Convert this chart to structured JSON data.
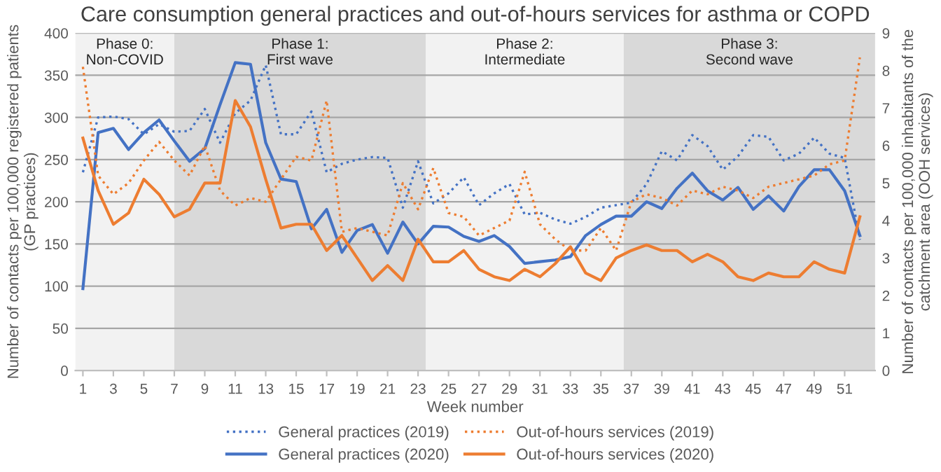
{
  "chart_data": {
    "type": "line",
    "title": "Care consumption general practices and out-of-hours services for asthma or COPD",
    "xlabel": "Week number",
    "ylabel": "Number of contacts per 100,000 registered patients\n(GP practices)",
    "y2label": "Number of contacts per 100,000 inhabitants of the\ncatchment area (OOH services)",
    "x": [
      1,
      2,
      3,
      4,
      5,
      6,
      7,
      8,
      9,
      10,
      11,
      12,
      13,
      14,
      15,
      16,
      17,
      18,
      19,
      20,
      21,
      22,
      23,
      24,
      25,
      26,
      27,
      28,
      29,
      30,
      31,
      32,
      33,
      34,
      35,
      36,
      37,
      38,
      39,
      40,
      41,
      42,
      43,
      44,
      45,
      46,
      47,
      48,
      49,
      50,
      51,
      52
    ],
    "xlim": [
      0.5,
      53
    ],
    "xticks": [
      1,
      3,
      5,
      7,
      9,
      11,
      13,
      15,
      17,
      19,
      21,
      23,
      25,
      27,
      29,
      31,
      33,
      35,
      37,
      39,
      41,
      43,
      45,
      47,
      49,
      51
    ],
    "ylim": [
      0,
      400
    ],
    "yticks": [
      0,
      50,
      100,
      150,
      200,
      250,
      300,
      350,
      400
    ],
    "y2lim": [
      0,
      9
    ],
    "y2ticks": [
      0,
      1,
      2,
      3,
      4,
      5,
      6,
      7,
      8,
      9
    ],
    "grid": "y",
    "legend": "bottom",
    "marker": "none",
    "bands": [
      {
        "axis": "x",
        "from": 0.5,
        "to": 7,
        "label": "Phase 0:\nNon-COVID",
        "color": "#f2f2f2"
      },
      {
        "axis": "x",
        "from": 7,
        "to": 23.5,
        "label": "Phase 1:\nFirst wave",
        "color": "#d9d9d9"
      },
      {
        "axis": "x",
        "from": 23.5,
        "to": 36.5,
        "label": "Phase 2:\nIntermediate",
        "color": "#f2f2f2"
      },
      {
        "axis": "x",
        "from": 36.5,
        "to": 53,
        "label": "Phase 3:\nSecond wave",
        "color": "#d9d9d9"
      }
    ],
    "series": [
      {
        "name": "General practices (2019)",
        "color": "#4472c4",
        "line_style": "dotted",
        "values": [
          235,
          300,
          301,
          298,
          280,
          292,
          283,
          284,
          310,
          270,
          305,
          320,
          362,
          280,
          280,
          307,
          235,
          245,
          250,
          253,
          252,
          193,
          248,
          198,
          210,
          229,
          196,
          210,
          221,
          185,
          187,
          179,
          174,
          182,
          193,
          196,
          199,
          221,
          260,
          249,
          279,
          266,
          238,
          254,
          279,
          277,
          249,
          257,
          276,
          257,
          252,
          155
        ]
      },
      {
        "name": "General practices (2020)",
        "color": "#4472c4",
        "line_style": "solid",
        "values": [
          97,
          282,
          287,
          262,
          282,
          297,
          272,
          248,
          263,
          315,
          365,
          363,
          270,
          227,
          224,
          168,
          191,
          140,
          166,
          173,
          139,
          176,
          150,
          171,
          170,
          159,
          153,
          160,
          147,
          127,
          129,
          131,
          135,
          160,
          173,
          183,
          183,
          200,
          192,
          216,
          234,
          213,
          202,
          217,
          191,
          207,
          189,
          218,
          238,
          238,
          213,
          160
        ]
      },
      {
        "name": "Out-of-hours services (2019)",
        "color": "#ed7d31",
        "line_style": "dotted",
        "axis": "y2",
        "values": [
          8.1,
          5.2,
          4.7,
          5.0,
          5.6,
          6.1,
          5.6,
          5.2,
          6.0,
          4.8,
          4.4,
          4.6,
          4.5,
          5.1,
          5.7,
          5.6,
          7.2,
          3.7,
          3.8,
          3.7,
          3.6,
          5.0,
          4.3,
          5.4,
          4.2,
          4.1,
          3.6,
          3.8,
          4.0,
          5.3,
          3.9,
          3.5,
          3.2,
          3.2,
          3.8,
          3.2,
          4.5,
          4.7,
          4.6,
          4.4,
          4.8,
          4.7,
          4.9,
          4.8,
          4.6,
          4.9,
          5.0,
          5.1,
          5.2,
          5.5,
          5.6,
          8.35
        ]
      },
      {
        "name": "Out-of-hours services (2020)",
        "color": "#ed7d31",
        "line_style": "solid",
        "axis": "y2",
        "values": [
          6.2,
          4.8,
          3.9,
          4.2,
          5.1,
          4.7,
          4.1,
          4.3,
          5.0,
          5.0,
          7.2,
          6.5,
          5.1,
          3.8,
          3.9,
          3.9,
          3.2,
          3.6,
          3.0,
          2.4,
          2.8,
          2.4,
          3.5,
          2.9,
          2.9,
          3.2,
          2.7,
          2.5,
          2.4,
          2.7,
          2.5,
          2.85,
          3.3,
          2.6,
          2.4,
          3.0,
          3.2,
          3.35,
          3.2,
          3.2,
          2.9,
          3.1,
          2.9,
          2.5,
          2.4,
          2.6,
          2.5,
          2.5,
          2.9,
          2.7,
          2.6,
          4.1
        ]
      }
    ]
  }
}
